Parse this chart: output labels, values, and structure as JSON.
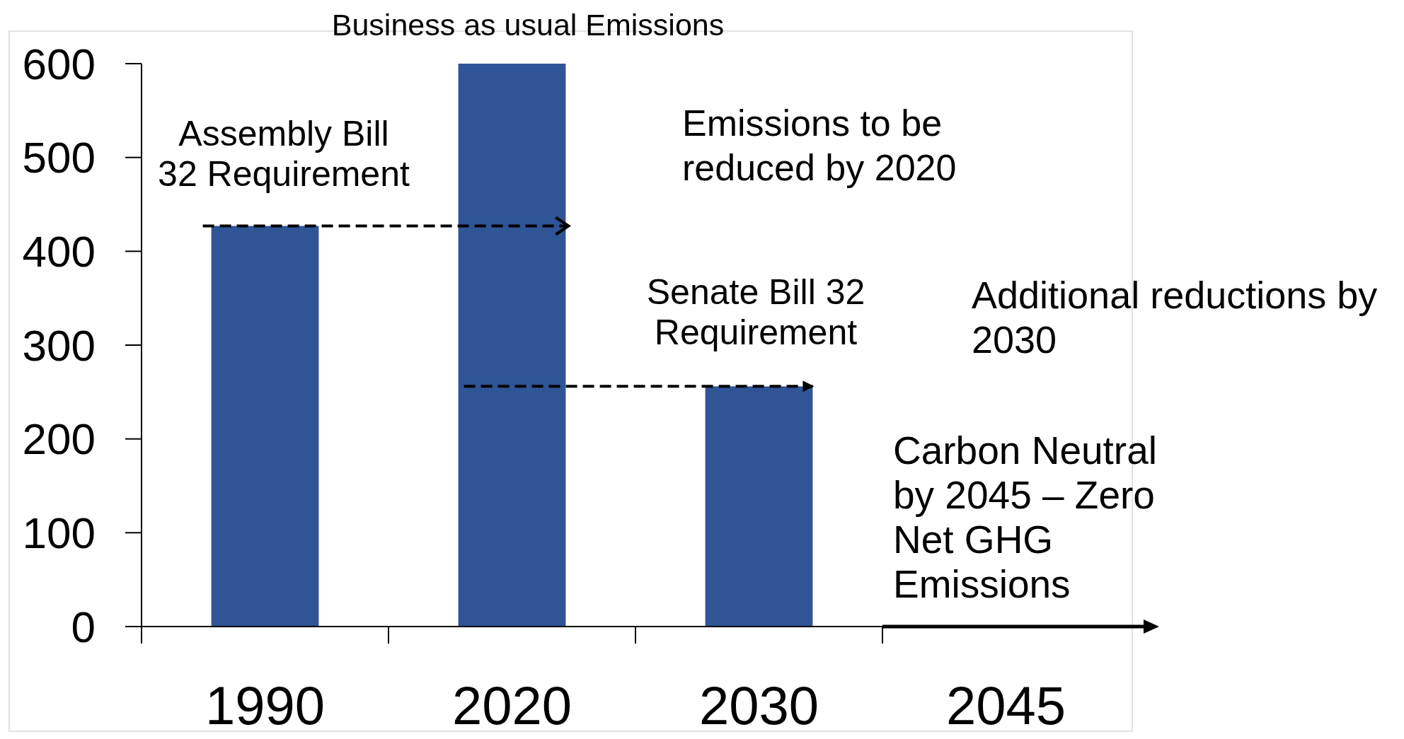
{
  "chart_data": {
    "type": "bar",
    "categories": [
      "1990",
      "2020",
      "2030",
      "2045"
    ],
    "values": [
      427,
      600,
      256,
      0
    ],
    "color": "#2f5597",
    "ylim": [
      0,
      600
    ],
    "yticks": [
      0,
      100,
      200,
      300,
      400,
      500,
      600
    ],
    "grid": false,
    "annotations": [
      {
        "text": "Business as usual Emissions",
        "x": "2020",
        "y": 600
      },
      {
        "text": "Assembly Bill 32 Requirement",
        "x": "1990",
        "y": 427
      },
      "Emissions to be reduced by 2020",
      {
        "text": "Senate Bill 32 Requirement",
        "x": "2030",
        "y": 256
      },
      "Additional reductions by 2030",
      {
        "text": "Carbon Neutral by 2045 – Zero Net GHG Emissions",
        "x": "2045",
        "y": 0
      }
    ]
  }
}
